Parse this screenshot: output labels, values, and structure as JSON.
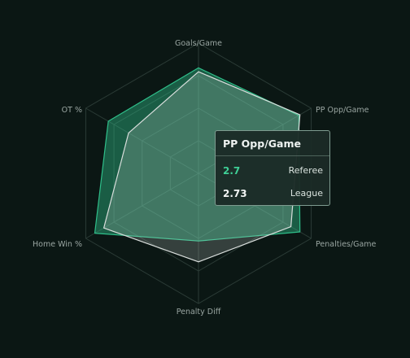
{
  "chart_data": {
    "type": "radar",
    "axes": [
      "Goals/Game",
      "PP Opp/Game",
      "Penalties/Game",
      "Penalty Diff",
      "Home Win %",
      "OT %"
    ],
    "grid": true,
    "rings": 4,
    "series": [
      {
        "name": "Referee",
        "normalized_values": [
          0.81,
          0.89,
          0.9,
          0.52,
          0.92,
          0.8
        ],
        "color": "#2fbf8a"
      },
      {
        "name": "League",
        "normalized_values": [
          0.78,
          0.9,
          0.82,
          0.68,
          0.84,
          0.62
        ],
        "color": "#d9dedc"
      }
    ],
    "tooltip": {
      "title": "PP Opp/Game",
      "rows": [
        {
          "value": "2.7",
          "name": "Referee",
          "color": "#3fcf96"
        },
        {
          "value": "2.73",
          "name": "League",
          "color": "#f2f5f4"
        }
      ]
    }
  },
  "colors": {
    "background": "#0b1714",
    "grid": "#2b3b36",
    "referee_fill": "#2fbf8a",
    "league_fill": "#cfd6d3"
  }
}
